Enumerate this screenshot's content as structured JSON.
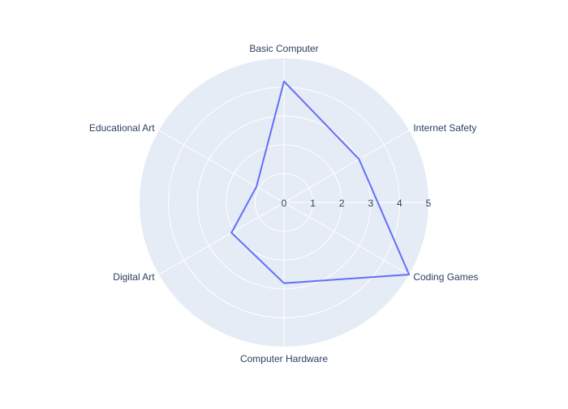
{
  "chart_data": {
    "type": "radar",
    "categories": [
      "Basic Computer",
      "Internet Safety",
      "Coding Games",
      "Computer Hardware",
      "Digital Art",
      "Educational Art"
    ],
    "series": [
      {
        "values": [
          4.2,
          3.0,
          5.0,
          2.8,
          2.1,
          1.1
        ],
        "color": "#636efa"
      }
    ],
    "radial_range": [
      0,
      5
    ],
    "radial_ticks": [
      "0",
      "1",
      "2",
      "3",
      "4",
      "5"
    ],
    "grid": true,
    "background_color": "#e5ecf6",
    "grid_color": "#ffffff",
    "text_color": "#2a3f5f"
  }
}
